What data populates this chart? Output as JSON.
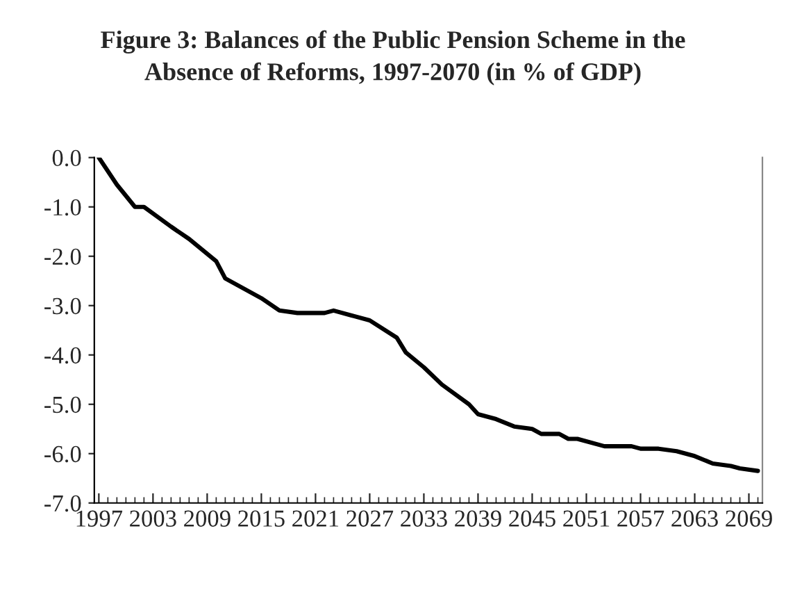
{
  "chart_data": {
    "type": "line",
    "title": "Figure 3: Balances of the Public Pension Scheme in the\nAbsence of Reforms, 1997-2070 (in % of GDP)",
    "x": [
      1997,
      1999,
      2001,
      2002,
      2005,
      2007,
      2010,
      2011,
      2013,
      2015,
      2017,
      2019,
      2022,
      2023,
      2025,
      2027,
      2030,
      2031,
      2033,
      2035,
      2038,
      2039,
      2041,
      2043,
      2045,
      2046,
      2048,
      2049,
      2050,
      2053,
      2056,
      2057,
      2059,
      2061,
      2063,
      2065,
      2067,
      2068,
      2070
    ],
    "series": [
      {
        "color": "#000000",
        "values": [
          0.0,
          -0.55,
          -1.0,
          -1.0,
          -1.4,
          -1.65,
          -2.1,
          -2.45,
          -2.65,
          -2.85,
          -3.1,
          -3.15,
          -3.15,
          -3.1,
          -3.2,
          -3.3,
          -3.65,
          -3.95,
          -4.25,
          -4.6,
          -5.0,
          -5.2,
          -5.3,
          -5.45,
          -5.5,
          -5.6,
          -5.6,
          -5.7,
          -5.7,
          -5.85,
          -5.85,
          -5.9,
          -5.9,
          -5.95,
          -6.05,
          -6.2,
          -6.25,
          -6.3,
          -6.35
        ]
      }
    ],
    "xlim": [
      1996.5,
      2070.5
    ],
    "xticks": [
      1997,
      2003,
      2009,
      2015,
      2021,
      2027,
      2033,
      2039,
      2045,
      2051,
      2057,
      2063,
      2069
    ],
    "ylim": [
      -7,
      0
    ],
    "yticks": [
      {
        "value": 0,
        "label": "0.0"
      },
      {
        "value": -1,
        "label": "-1.0"
      },
      {
        "value": -2,
        "label": "-2.0"
      },
      {
        "value": -3,
        "label": "-3.0"
      },
      {
        "value": -4,
        "label": "-4.0"
      },
      {
        "value": -5,
        "label": "-5.0"
      },
      {
        "value": -6,
        "label": "-6.0"
      },
      {
        "value": -7,
        "label": "-7.0"
      }
    ],
    "grid": false,
    "line_style": "solid",
    "marker": "none"
  }
}
